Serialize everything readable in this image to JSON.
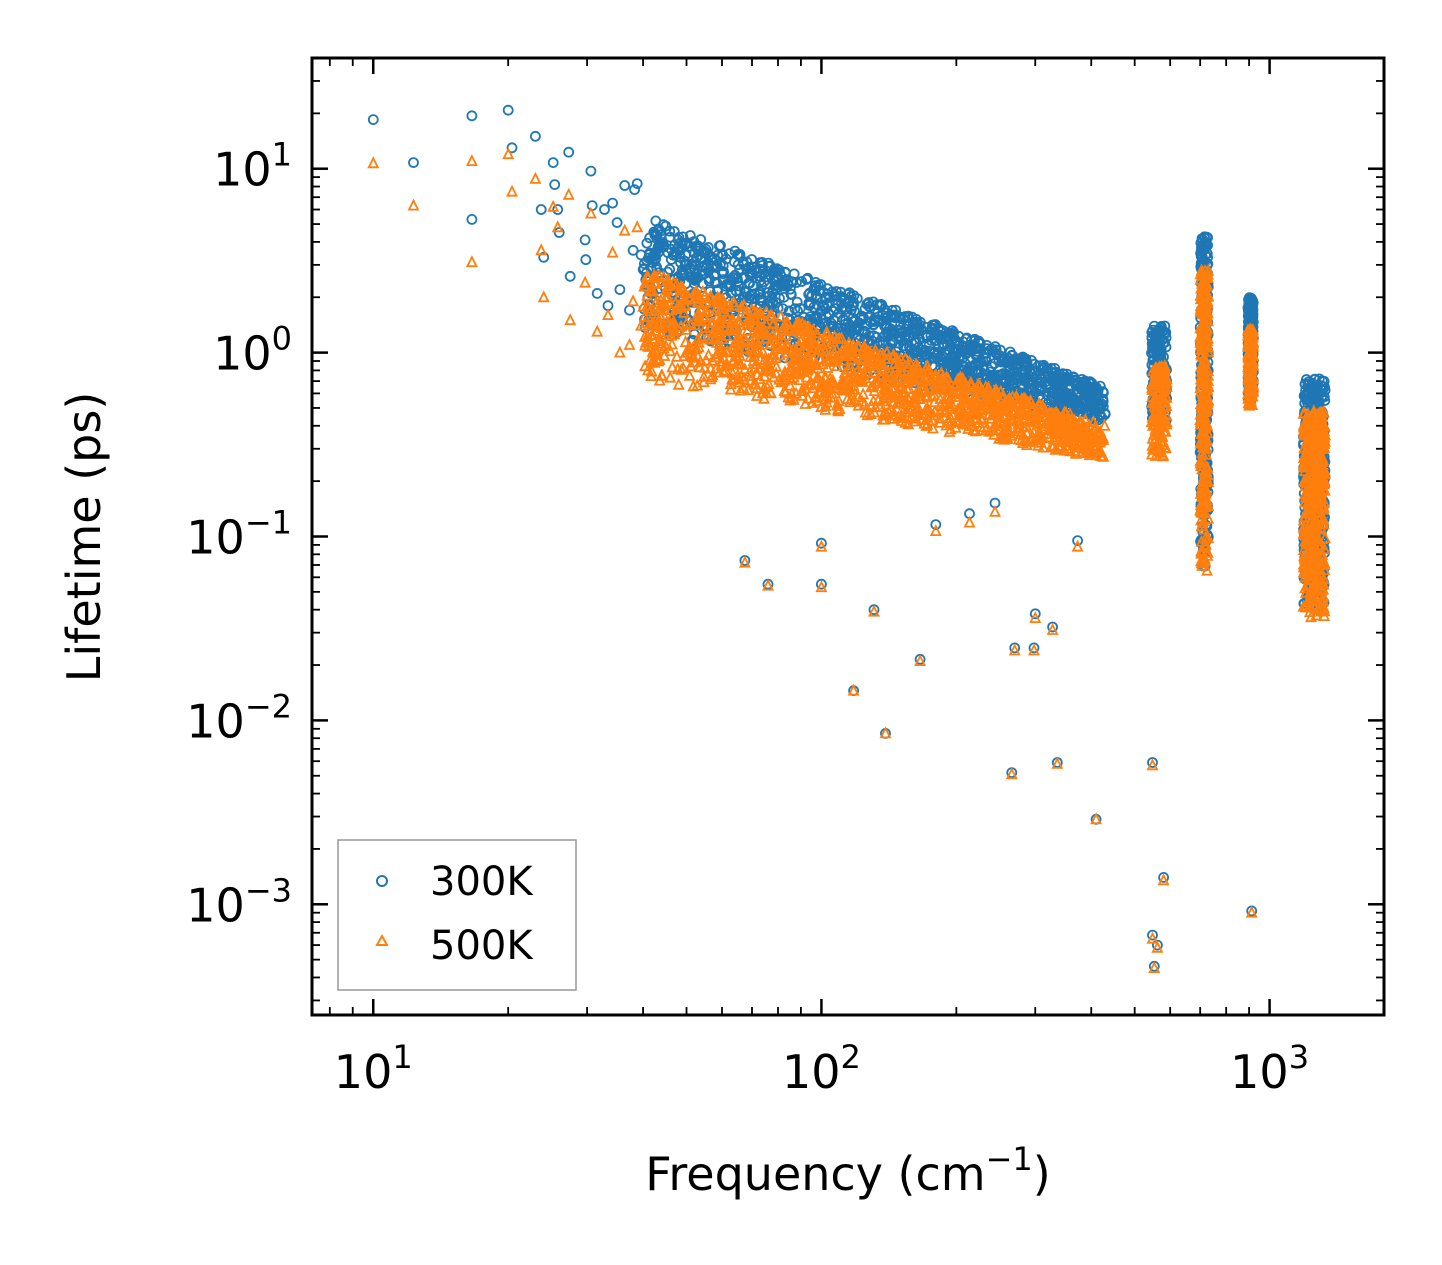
{
  "chart_data": {
    "type": "scatter",
    "title": "",
    "xlabel": "Frequency (cm",
    "xlabel_sup": "−1",
    "xlabel_suffix": ")",
    "ylabel": "Lifetime (ps)",
    "xscale": "log",
    "yscale": "log",
    "xlim": [
      7.3,
      1800
    ],
    "ylim": [
      0.00025,
      40
    ],
    "x_ticks": [
      {
        "base": "10",
        "exp": "1"
      },
      {
        "base": "10",
        "exp": "2"
      },
      {
        "base": "10",
        "exp": "3"
      }
    ],
    "y_ticks": [
      {
        "base": "10",
        "exp": "1"
      },
      {
        "base": "10",
        "exp": "0"
      },
      {
        "base": "10",
        "exp": "−1"
      },
      {
        "base": "10",
        "exp": "−2"
      },
      {
        "base": "10",
        "exp": "−3"
      }
    ],
    "legend_position": "lower-left",
    "series": [
      {
        "name": "300K",
        "marker": "circle",
        "color": "#1f77b4",
        "clusters": [
          {
            "fmin": 40,
            "fmax": 430,
            "lmin_start": 1.3,
            "lmax_start": 5.5,
            "lmin_end": 0.42,
            "lmax_end": 0.65,
            "count": 1400
          },
          {
            "fmin": 545,
            "fmax": 590,
            "lmin": 0.42,
            "lmax": 1.4,
            "count": 140
          },
          {
            "fmin": 700,
            "fmax": 730,
            "lmin": 0.065,
            "lmax": 4.3,
            "count": 280
          },
          {
            "fmin": 895,
            "fmax": 920,
            "lmin": 0.55,
            "lmax": 2.0,
            "count": 160
          },
          {
            "fmin": 1190,
            "fmax": 1330,
            "lmin": 0.042,
            "lmax": 0.72,
            "count": 420
          }
        ],
        "points": [
          [
            10,
            18.5
          ],
          [
            12.3,
            10.8
          ],
          [
            16.6,
            19.4
          ],
          [
            16.6,
            5.3
          ],
          [
            20,
            20.8
          ],
          [
            20.4,
            13.0
          ],
          [
            23,
            15.0
          ],
          [
            23.7,
            6.0
          ],
          [
            24,
            3.3
          ],
          [
            25.2,
            10.8
          ],
          [
            25.4,
            8.2
          ],
          [
            25.8,
            6.0
          ],
          [
            26,
            4.5
          ],
          [
            27.3,
            12.3
          ],
          [
            27.5,
            2.6
          ],
          [
            29.7,
            4.1
          ],
          [
            29.8,
            3.2
          ],
          [
            30.6,
            9.7
          ],
          [
            30.8,
            6.3
          ],
          [
            31.6,
            2.1
          ],
          [
            32.8,
            6.0
          ],
          [
            33.4,
            1.8
          ],
          [
            34.2,
            6.5
          ],
          [
            35,
            5.1
          ],
          [
            35.5,
            2.2
          ],
          [
            36.4,
            8.1
          ],
          [
            37.3,
            1.7
          ],
          [
            38,
            3.6
          ],
          [
            38.3,
            7.7
          ],
          [
            38.8,
            8.3
          ],
          [
            39.6,
            3.4
          ],
          [
            41,
            2.0
          ],
          [
            42.7,
            5.2
          ],
          [
            44,
            1.4
          ],
          [
            67.5,
            0.074
          ],
          [
            76,
            0.055
          ],
          [
            100,
            0.092
          ],
          [
            100,
            0.055
          ],
          [
            118,
            0.0145
          ],
          [
            131,
            0.04
          ],
          [
            139,
            0.0085
          ],
          [
            166,
            0.0215
          ],
          [
            180,
            0.116
          ],
          [
            214,
            0.133
          ],
          [
            244,
            0.152
          ],
          [
            266,
            0.0052
          ],
          [
            270,
            0.0248
          ],
          [
            298,
            0.0248
          ],
          [
            300,
            0.038
          ],
          [
            328,
            0.0322
          ],
          [
            336,
            0.0059
          ],
          [
            373,
            0.095
          ],
          [
            410,
            0.0029
          ],
          [
            548,
            0.0059
          ],
          [
            548,
            0.00068
          ],
          [
            553,
            0.00046
          ],
          [
            562,
            0.0006
          ],
          [
            580,
            0.0014
          ],
          [
            912,
            0.00092
          ]
        ]
      },
      {
        "name": "500K",
        "marker": "triangle",
        "color": "#ff7f0e",
        "clusters": [
          {
            "fmin": 40,
            "fmax": 430,
            "lmin_start": 0.72,
            "lmax_start": 2.8,
            "lmin_end": 0.26,
            "lmax_end": 0.4,
            "count": 1400
          },
          {
            "fmin": 545,
            "fmax": 590,
            "lmin": 0.27,
            "lmax": 0.85,
            "count": 140
          },
          {
            "fmin": 700,
            "fmax": 730,
            "lmin": 0.065,
            "lmax": 2.8,
            "count": 280
          },
          {
            "fmin": 895,
            "fmax": 920,
            "lmin": 0.5,
            "lmax": 1.35,
            "count": 160
          },
          {
            "fmin": 1190,
            "fmax": 1330,
            "lmin": 0.036,
            "lmax": 0.48,
            "count": 420
          }
        ],
        "points": [
          [
            10,
            10.7
          ],
          [
            12.3,
            6.3
          ],
          [
            16.6,
            11.0
          ],
          [
            16.6,
            3.1
          ],
          [
            20,
            12.0
          ],
          [
            20.4,
            7.5
          ],
          [
            23,
            8.8
          ],
          [
            23.7,
            3.6
          ],
          [
            24,
            2.0
          ],
          [
            25.2,
            6.2
          ],
          [
            25.8,
            4.8
          ],
          [
            27.3,
            7.2
          ],
          [
            27.5,
            1.5
          ],
          [
            29.7,
            2.4
          ],
          [
            30.6,
            5.7
          ],
          [
            31.6,
            1.3
          ],
          [
            33.4,
            1.6
          ],
          [
            34.2,
            3.5
          ],
          [
            35.5,
            1.0
          ],
          [
            36.4,
            4.6
          ],
          [
            37.3,
            1.1
          ],
          [
            38,
            1.9
          ],
          [
            38.8,
            4.8
          ],
          [
            39.6,
            1.4
          ],
          [
            41,
            0.8
          ],
          [
            44,
            0.75
          ],
          [
            67.5,
            0.072
          ],
          [
            76,
            0.054
          ],
          [
            100,
            0.088
          ],
          [
            100,
            0.053
          ],
          [
            118,
            0.0145
          ],
          [
            131,
            0.039
          ],
          [
            139,
            0.0085
          ],
          [
            166,
            0.021
          ],
          [
            180,
            0.107
          ],
          [
            214,
            0.119
          ],
          [
            244,
            0.136
          ],
          [
            266,
            0.0051
          ],
          [
            270,
            0.024
          ],
          [
            298,
            0.024
          ],
          [
            300,
            0.036
          ],
          [
            328,
            0.031
          ],
          [
            336,
            0.0058
          ],
          [
            373,
            0.088
          ],
          [
            410,
            0.0029
          ],
          [
            548,
            0.0057
          ],
          [
            548,
            0.00065
          ],
          [
            553,
            0.00045
          ],
          [
            562,
            0.00058
          ],
          [
            580,
            0.00135
          ],
          [
            912,
            0.0009
          ]
        ]
      }
    ]
  }
}
